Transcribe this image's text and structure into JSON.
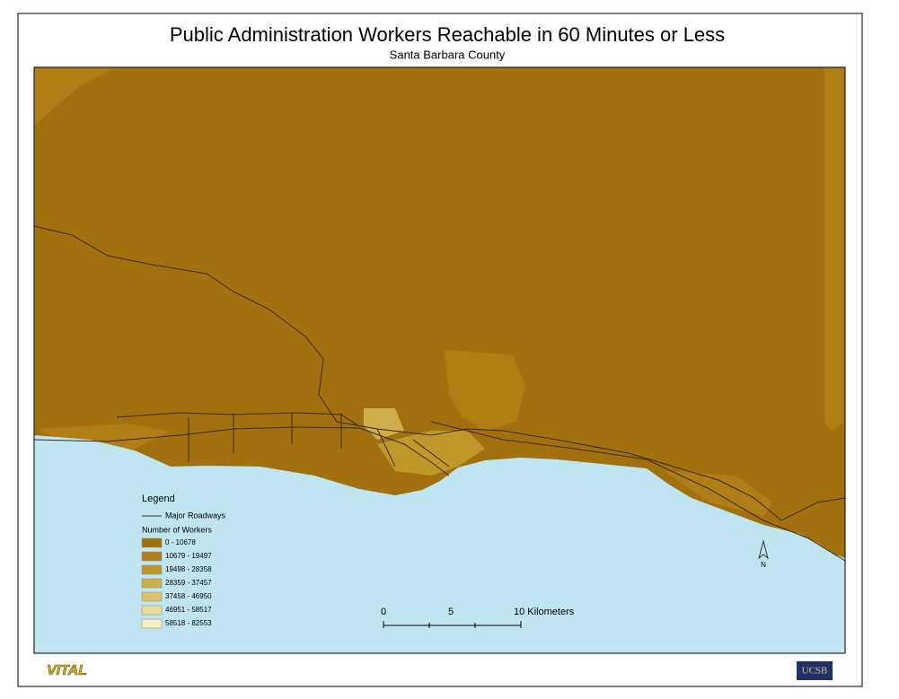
{
  "header": {
    "title": "Public Administration Workers Reachable in 60 Minutes or Less",
    "subtitle": "Santa Barbara County"
  },
  "legend": {
    "title": "Legend",
    "road_label": "Major Roadways",
    "classes_title": "Number of Workers",
    "classes": [
      {
        "label": "0 - 10678",
        "color": "#a2700c"
      },
      {
        "label": "10679 - 19497",
        "color": "#b07e14"
      },
      {
        "label": "19498 - 28358",
        "color": "#c0982a"
      },
      {
        "label": "28359 - 37457",
        "color": "#cfad48"
      },
      {
        "label": "37458 - 46950",
        "color": "#dbc26c"
      },
      {
        "label": "46951 - 58517",
        "color": "#e9da9c"
      },
      {
        "label": "58518 - 82553",
        "color": "#f8f0c4"
      }
    ]
  },
  "scale_bar": {
    "labels": [
      "0",
      "5",
      "10 Kilometers"
    ]
  },
  "north_arrow": {
    "label": "N"
  },
  "logos": {
    "left": "VITAL",
    "right": "UCSB"
  }
}
